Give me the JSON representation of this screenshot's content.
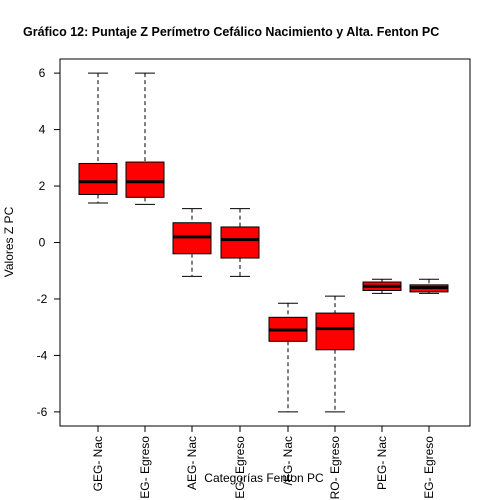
{
  "chart_data": {
    "type": "boxplot",
    "title": "Gráfico 12: Puntaje Z Perímetro Cefálico Nacimiento y Alta. Fenton PC",
    "xlabel": "Categorías Fenton PC",
    "ylabel": "Valores Z PC",
    "ylim": [
      -6.5,
      6.5
    ],
    "yticks": [
      -6,
      -4,
      -2,
      0,
      2,
      4,
      6
    ],
    "grid": false,
    "box_color": "#ff0000",
    "categories": [
      "GEG- Nac",
      "GEG- Egreso",
      "AEG- Nac",
      "AEG- Egreso",
      "MEG- Nac",
      "MEG- Egreso",
      "PEG- Nac",
      "PEG- Egreso"
    ],
    "tick_labels_visible": [
      "GEG- Nac",
      "EG- Egreso",
      "AEG- Nac",
      "EG- Egreso",
      "/EG- Nac",
      "RO- Egreso",
      "PEG- Nac",
      "EG- Egreso"
    ],
    "boxes": [
      {
        "min": 1.4,
        "q1": 1.7,
        "median": 2.15,
        "q3": 2.8,
        "max": 6.0
      },
      {
        "min": 1.35,
        "q1": 1.6,
        "median": 2.15,
        "q3": 2.85,
        "max": 6.0
      },
      {
        "min": -1.2,
        "q1": -0.4,
        "median": 0.2,
        "q3": 0.7,
        "max": 1.2
      },
      {
        "min": -1.2,
        "q1": -0.55,
        "median": 0.1,
        "q3": 0.55,
        "max": 1.2
      },
      {
        "min": -6.0,
        "q1": -3.5,
        "median": -3.1,
        "q3": -2.65,
        "max": -2.15
      },
      {
        "min": -6.0,
        "q1": -3.8,
        "median": -3.05,
        "q3": -2.5,
        "max": -1.9
      },
      {
        "min": -1.8,
        "q1": -1.7,
        "median": -1.55,
        "q3": -1.4,
        "max": -1.3
      },
      {
        "min": -1.8,
        "q1": -1.75,
        "median": -1.6,
        "q3": -1.5,
        "max": -1.3
      }
    ]
  }
}
